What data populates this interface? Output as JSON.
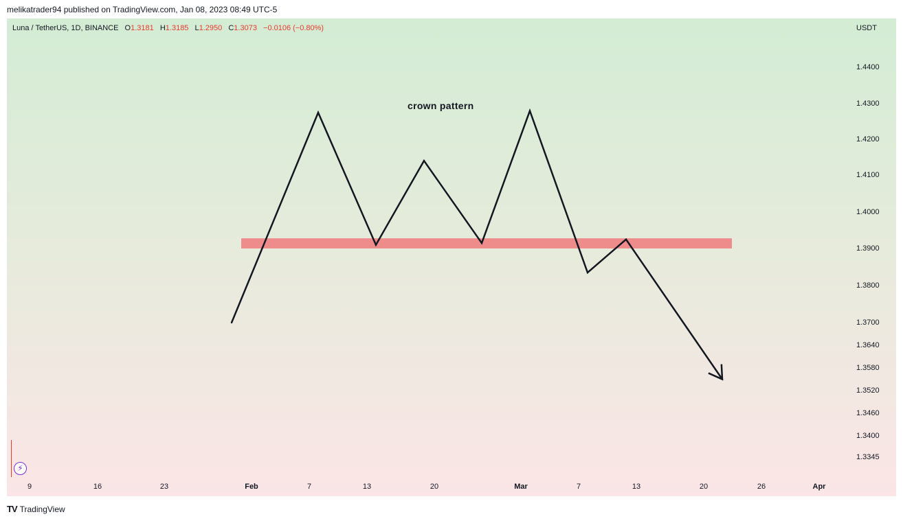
{
  "publish_line": "melikatrader94 published on TradingView.com, Jan 08, 2023 08:49 UTC-5",
  "symbol": {
    "name": "Luna / TetherUS, 1D, BINANCE",
    "open_label": "O",
    "open": "1.3181",
    "high_label": "H",
    "high": "1.3185",
    "low_label": "L",
    "low": "1.2950",
    "close_label": "C",
    "close": "1.3073",
    "change": "−0.0106 (−0.80%)"
  },
  "colors": {
    "ohlc_values": "#e8392d",
    "zone_fill": "#ee8c8c",
    "pattern_line": "#131722",
    "bg_top": "#d3ecd4",
    "bg_bottom": "#fbe5e6"
  },
  "replay_icon": "lightning-icon",
  "footer": {
    "brand": "TradingView",
    "logo_text": "TV"
  },
  "chart_data": {
    "type": "line",
    "title": "",
    "currency": "USDT",
    "x_ticks": [
      "9",
      "16",
      "23",
      "Feb",
      "7",
      "13",
      "20",
      "Mar",
      "7",
      "13",
      "20",
      "26",
      "Apr"
    ],
    "y_ticks": [
      "1.4400",
      "1.4300",
      "1.4200",
      "1.4100",
      "1.4000",
      "1.3900",
      "1.3800",
      "1.3700",
      "1.3640",
      "1.3580",
      "1.3520",
      "1.3460",
      "1.3400",
      "1.3345"
    ],
    "annotation": "crown pattern",
    "zone": {
      "from": 1.39,
      "to": 1.3928,
      "x_start": "Jan 31",
      "x_end": "Mar 23"
    },
    "series": [
      {
        "points": [
          {
            "x": "Jan 30",
            "y": 1.37
          },
          {
            "x": "Feb 8",
            "y": 1.4275
          },
          {
            "x": "Feb 14",
            "y": 1.391
          },
          {
            "x": "Feb 19",
            "y": 1.414
          },
          {
            "x": "Feb 25",
            "y": 1.3915
          },
          {
            "x": "Mar 2",
            "y": 1.428
          },
          {
            "x": "Mar 8",
            "y": 1.3835
          },
          {
            "x": "Mar 12",
            "y": 1.3925
          },
          {
            "x": "Mar 22",
            "y": 1.355
          }
        ]
      }
    ]
  }
}
